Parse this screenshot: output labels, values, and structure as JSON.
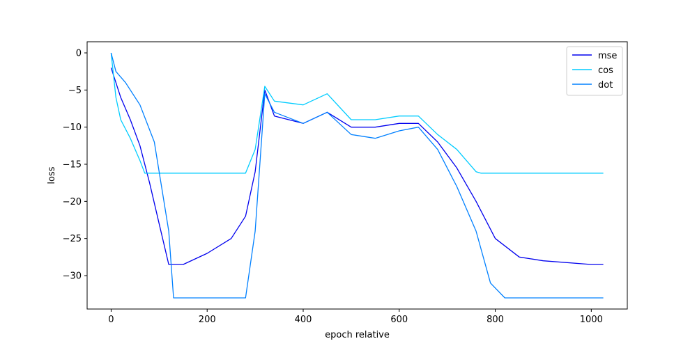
{
  "chart_data": {
    "type": "line",
    "title": "",
    "xlabel": "epoch relative",
    "ylabel": "loss",
    "xlim": [
      -50,
      1075
    ],
    "ylim": [
      -34.5,
      1.5
    ],
    "xticks": [
      0,
      200,
      400,
      600,
      800,
      1000
    ],
    "yticks": [
      0,
      -5,
      -10,
      -15,
      -20,
      -25,
      -30
    ],
    "legend_position": "top-right",
    "grid": false,
    "series": [
      {
        "name": "mse",
        "color": "#0000ee",
        "points": [
          [
            0,
            -2.0
          ],
          [
            10,
            -4.0
          ],
          [
            20,
            -6.0
          ],
          [
            40,
            -9.0
          ],
          [
            60,
            -12.5
          ],
          [
            80,
            -17.5
          ],
          [
            100,
            -23.0
          ],
          [
            120,
            -28.5
          ],
          [
            150,
            -28.5
          ],
          [
            200,
            -27.0
          ],
          [
            250,
            -25.0
          ],
          [
            280,
            -22.0
          ],
          [
            300,
            -16.0
          ],
          [
            320,
            -5.0
          ],
          [
            340,
            -8.5
          ],
          [
            400,
            -9.5
          ],
          [
            450,
            -8.0
          ],
          [
            500,
            -10.0
          ],
          [
            550,
            -10.0
          ],
          [
            600,
            -9.5
          ],
          [
            640,
            -9.5
          ],
          [
            680,
            -12.0
          ],
          [
            720,
            -15.5
          ],
          [
            760,
            -20.0
          ],
          [
            800,
            -25.0
          ],
          [
            850,
            -27.5
          ],
          [
            900,
            -28.0
          ],
          [
            1000,
            -28.5
          ],
          [
            1025,
            -28.5
          ]
        ]
      },
      {
        "name": "cos",
        "color": "#00ccff",
        "points": [
          [
            0,
            0.0
          ],
          [
            10,
            -6.0
          ],
          [
            20,
            -9.0
          ],
          [
            40,
            -11.5
          ],
          [
            60,
            -14.5
          ],
          [
            70,
            -16.2
          ],
          [
            280,
            -16.2
          ],
          [
            300,
            -13.0
          ],
          [
            320,
            -4.5
          ],
          [
            340,
            -6.5
          ],
          [
            400,
            -7.0
          ],
          [
            450,
            -5.5
          ],
          [
            500,
            -9.0
          ],
          [
            550,
            -9.0
          ],
          [
            600,
            -8.5
          ],
          [
            640,
            -8.5
          ],
          [
            680,
            -11.0
          ],
          [
            720,
            -13.0
          ],
          [
            760,
            -16.0
          ],
          [
            770,
            -16.2
          ],
          [
            1025,
            -16.2
          ]
        ]
      },
      {
        "name": "dot",
        "color": "#0080ff",
        "points": [
          [
            0,
            0.0
          ],
          [
            10,
            -2.5
          ],
          [
            30,
            -4.0
          ],
          [
            60,
            -7.0
          ],
          [
            90,
            -12.0
          ],
          [
            120,
            -24.0
          ],
          [
            130,
            -33.0
          ],
          [
            280,
            -33.0
          ],
          [
            300,
            -24.0
          ],
          [
            320,
            -5.5
          ],
          [
            340,
            -8.0
          ],
          [
            400,
            -9.5
          ],
          [
            450,
            -8.0
          ],
          [
            500,
            -11.0
          ],
          [
            550,
            -11.5
          ],
          [
            600,
            -10.5
          ],
          [
            640,
            -10.0
          ],
          [
            680,
            -13.0
          ],
          [
            720,
            -18.0
          ],
          [
            760,
            -24.0
          ],
          [
            790,
            -31.0
          ],
          [
            820,
            -33.0
          ],
          [
            1025,
            -33.0
          ]
        ]
      }
    ]
  }
}
